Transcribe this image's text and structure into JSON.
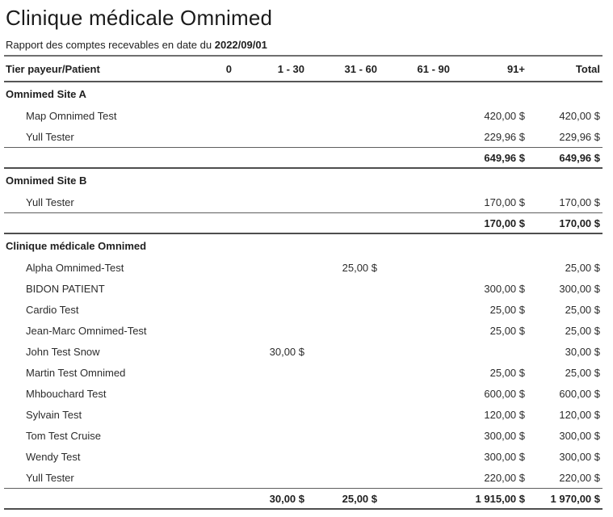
{
  "report": {
    "title": "Clinique médicale Omnimed",
    "subtitle_prefix": "Rapport des comptes recevables en date du",
    "report_date": "2022/09/01"
  },
  "table": {
    "columns": [
      "Tier payeur/Patient",
      "0",
      "1 - 30",
      "31 - 60",
      "61 - 90",
      "91+",
      "Total"
    ],
    "sections": [
      {
        "name": "Omnimed Site A",
        "rows": [
          {
            "patient": "Map Omnimed Test",
            "amounts": [
              "",
              "",
              "",
              "",
              "420,00 $",
              "420,00 $"
            ]
          },
          {
            "patient": "Yull Tester",
            "amounts": [
              "",
              "",
              "",
              "",
              "229,96 $",
              "229,96 $"
            ]
          }
        ],
        "subtotal": [
          "",
          "",
          "",
          "",
          "649,96 $",
          "649,96 $"
        ]
      },
      {
        "name": "Omnimed Site B",
        "rows": [
          {
            "patient": "Yull Tester",
            "amounts": [
              "",
              "",
              "",
              "",
              "170,00 $",
              "170,00 $"
            ]
          }
        ],
        "subtotal": [
          "",
          "",
          "",
          "",
          "170,00 $",
          "170,00 $"
        ]
      },
      {
        "name": "Clinique médicale Omnimed",
        "rows": [
          {
            "patient": "Alpha Omnimed-Test",
            "amounts": [
              "",
              "",
              "25,00 $",
              "",
              "",
              "25,00 $"
            ]
          },
          {
            "patient": "BIDON PATIENT",
            "amounts": [
              "",
              "",
              "",
              "",
              "300,00 $",
              "300,00 $"
            ]
          },
          {
            "patient": "Cardio Test",
            "amounts": [
              "",
              "",
              "",
              "",
              "25,00 $",
              "25,00 $"
            ]
          },
          {
            "patient": "Jean-Marc Omnimed-Test",
            "amounts": [
              "",
              "",
              "",
              "",
              "25,00 $",
              "25,00 $"
            ]
          },
          {
            "patient": "John Test Snow",
            "amounts": [
              "",
              "30,00 $",
              "",
              "",
              "",
              "30,00 $"
            ]
          },
          {
            "patient": "Martin Test Omnimed",
            "amounts": [
              "",
              "",
              "",
              "",
              "25,00 $",
              "25,00 $"
            ]
          },
          {
            "patient": "Mhbouchard Test",
            "amounts": [
              "",
              "",
              "",
              "",
              "600,00 $",
              "600,00 $"
            ]
          },
          {
            "patient": "Sylvain Test",
            "amounts": [
              "",
              "",
              "",
              "",
              "120,00 $",
              "120,00 $"
            ]
          },
          {
            "patient": "Tom Test Cruise",
            "amounts": [
              "",
              "",
              "",
              "",
              "300,00 $",
              "300,00 $"
            ]
          },
          {
            "patient": "Wendy Test",
            "amounts": [
              "",
              "",
              "",
              "",
              "300,00 $",
              "300,00 $"
            ]
          },
          {
            "patient": "Yull Tester",
            "amounts": [
              "",
              "",
              "",
              "",
              "220,00 $",
              "220,00 $"
            ]
          }
        ],
        "subtotal": [
          "",
          "30,00 $",
          "25,00 $",
          "",
          "1 915,00 $",
          "1 970,00 $"
        ]
      }
    ]
  }
}
